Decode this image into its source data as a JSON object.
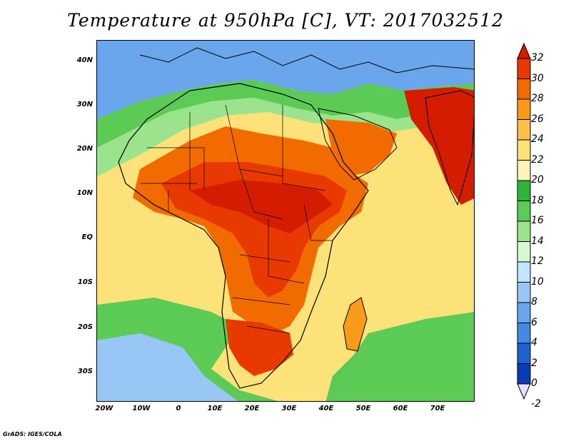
{
  "title": "Temperature at 950hPa [C], VT: 2017032512",
  "credit": "GrADS: IGES/COLA",
  "chart_data": {
    "type": "heatmap",
    "title": "Temperature at 950hPa [C], VT: 2017032512",
    "lon_range": [
      -22,
      80
    ],
    "lat_range": [
      -37,
      45
    ],
    "x_ticks": [
      {
        "label": "20W",
        "lon": -20
      },
      {
        "label": "10W",
        "lon": -10
      },
      {
        "label": "0",
        "lon": 0
      },
      {
        "label": "10E",
        "lon": 10
      },
      {
        "label": "20E",
        "lon": 20
      },
      {
        "label": "30E",
        "lon": 30
      },
      {
        "label": "40E",
        "lon": 40
      },
      {
        "label": "50E",
        "lon": 50
      },
      {
        "label": "60E",
        "lon": 60
      },
      {
        "label": "70E",
        "lon": 70
      }
    ],
    "y_ticks": [
      {
        "label": "40N",
        "lat": 40
      },
      {
        "label": "30N",
        "lat": 30
      },
      {
        "label": "20N",
        "lat": 20
      },
      {
        "label": "10N",
        "lat": 10
      },
      {
        "label": "EQ",
        "lat": 0
      },
      {
        "label": "10S",
        "lat": -10
      },
      {
        "label": "20S",
        "lat": -20
      },
      {
        "label": "30S",
        "lat": -30
      }
    ],
    "colorbar": {
      "labels": [
        "32",
        "30",
        "28",
        "26",
        "24",
        "22",
        "20",
        "18",
        "16",
        "14",
        "12",
        "10",
        "8",
        "6",
        "4",
        "2",
        "0",
        "-2"
      ],
      "colors": [
        "#d41c00",
        "#e83a00",
        "#f26b00",
        "#f99a1a",
        "#fcc04a",
        "#fde27a",
        "#fdf6b8",
        "#2fb43b",
        "#5ccb55",
        "#9be38c",
        "#d6f7cf",
        "#c2e4ff",
        "#98c6f5",
        "#6aa6ec",
        "#4489e0",
        "#1e62d0",
        "#0a3ab6",
        "#04146e"
      ]
    }
  }
}
